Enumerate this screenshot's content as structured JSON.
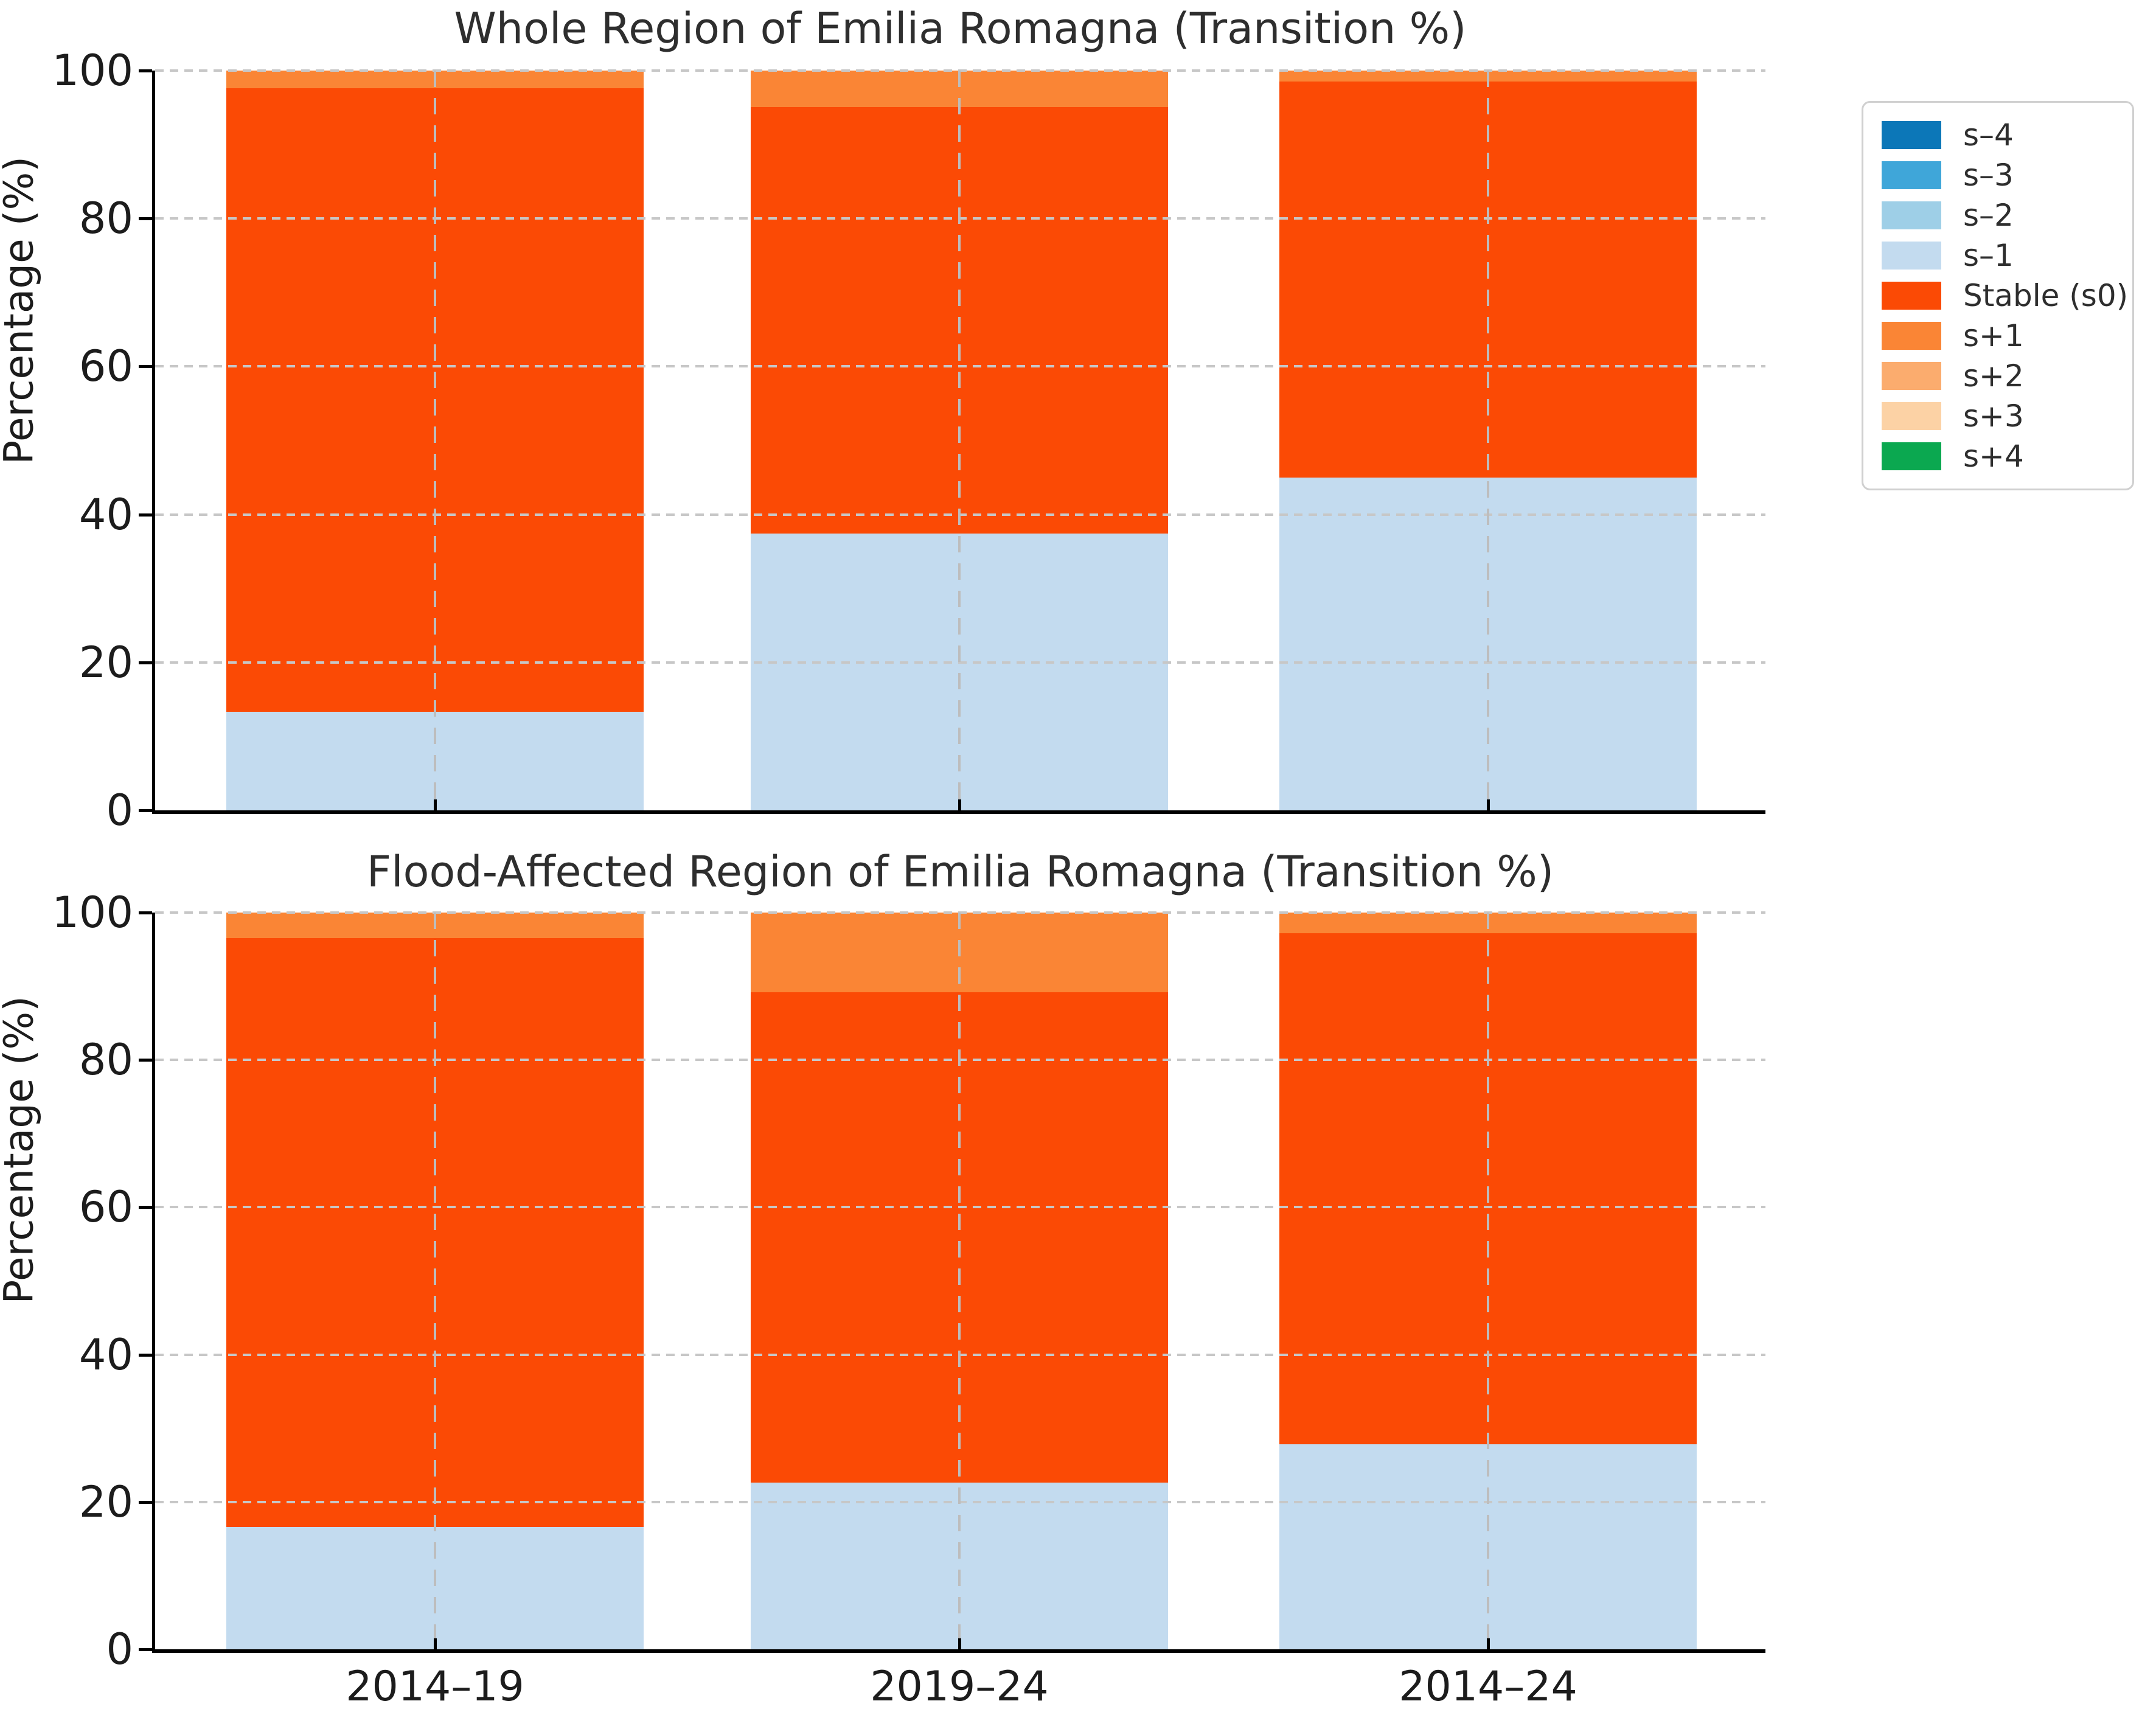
{
  "page": {
    "background": "#ffffff",
    "text_color": "#1c1c1c"
  },
  "legend": {
    "position": "outside-right",
    "items": [
      {
        "label": "s–4",
        "color": "#0c77b8"
      },
      {
        "label": "s–3",
        "color": "#3fa6d9"
      },
      {
        "label": "s–2",
        "color": "#9ecfe7"
      },
      {
        "label": "s–1",
        "color": "#c3dbef"
      },
      {
        "label": "Stable (s0)",
        "color": "#fb4a05"
      },
      {
        "label": "s+1",
        "color": "#fa8535"
      },
      {
        "label": "s+2",
        "color": "#fbac6e"
      },
      {
        "label": "s+3",
        "color": "#fcd2a5"
      },
      {
        "label": "s+4",
        "color": "#0ba850"
      }
    ]
  },
  "chart_data": [
    {
      "type": "bar",
      "stacked": true,
      "title": "Whole Region of Emilia Romagna (Transition %)",
      "ylabel": "Percentage (%)",
      "ylim": [
        0,
        100
      ],
      "yticks": [
        0,
        20,
        40,
        60,
        80,
        100
      ],
      "grid": "dashed horizontal and vertical, drawn over bars",
      "show_xticklabels": false,
      "categories": [
        "2014–19",
        "2019–24",
        "2014–24"
      ],
      "series": [
        {
          "name": "s–4",
          "color": "#0c77b8",
          "values": [
            0,
            0,
            0
          ]
        },
        {
          "name": "s–3",
          "color": "#3fa6d9",
          "values": [
            0,
            0,
            0
          ]
        },
        {
          "name": "s–2",
          "color": "#9ecfe7",
          "values": [
            0,
            0,
            0
          ]
        },
        {
          "name": "s–1",
          "color": "#c3dbef",
          "values": [
            13.3,
            37.4,
            45.0
          ]
        },
        {
          "name": "Stable (s0)",
          "color": "#fb4a05",
          "values": [
            84.3,
            57.7,
            53.5
          ]
        },
        {
          "name": "s+1",
          "color": "#fa8535",
          "values": [
            2.4,
            4.9,
            1.5
          ]
        },
        {
          "name": "s+2",
          "color": "#fbac6e",
          "values": [
            0,
            0,
            0
          ]
        },
        {
          "name": "s+3",
          "color": "#fcd2a5",
          "values": [
            0,
            0,
            0
          ]
        },
        {
          "name": "s+4",
          "color": "#0ba850",
          "values": [
            0,
            0,
            0
          ]
        }
      ]
    },
    {
      "type": "bar",
      "stacked": true,
      "title": "Flood-Affected Region of Emilia Romagna (Transition %)",
      "ylabel": "Percentage (%)",
      "ylim": [
        0,
        100
      ],
      "yticks": [
        0,
        20,
        40,
        60,
        80,
        100
      ],
      "grid": "dashed horizontal and vertical, drawn over bars",
      "show_xticklabels": true,
      "categories": [
        "2014–19",
        "2019–24",
        "2014–24"
      ],
      "series": [
        {
          "name": "s–4",
          "color": "#0c77b8",
          "values": [
            0,
            0,
            0
          ]
        },
        {
          "name": "s–3",
          "color": "#3fa6d9",
          "values": [
            0,
            0,
            0
          ]
        },
        {
          "name": "s–2",
          "color": "#9ecfe7",
          "values": [
            0,
            0,
            0
          ]
        },
        {
          "name": "s–1",
          "color": "#c3dbef",
          "values": [
            16.6,
            22.6,
            27.8
          ]
        },
        {
          "name": "Stable (s0)",
          "color": "#fb4a05",
          "values": [
            79.9,
            66.6,
            69.4
          ]
        },
        {
          "name": "s+1",
          "color": "#fa8535",
          "values": [
            3.5,
            10.8,
            2.8
          ]
        },
        {
          "name": "s+2",
          "color": "#fbac6e",
          "values": [
            0,
            0,
            0
          ]
        },
        {
          "name": "s+3",
          "color": "#fcd2a5",
          "values": [
            0,
            0,
            0
          ]
        },
        {
          "name": "s+4",
          "color": "#0ba850",
          "values": [
            0,
            0,
            0
          ]
        }
      ]
    }
  ]
}
